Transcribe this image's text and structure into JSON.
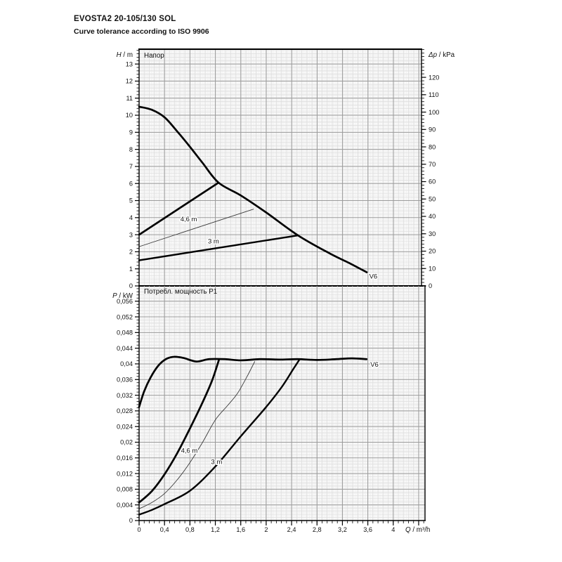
{
  "header": {
    "title": "EVOSTA2 20-105/130 SOL",
    "subtitle": "Curve tolerance according to ISO 9906"
  },
  "colors": {
    "curve": "#000000",
    "thin_curve": "#3a3a3a",
    "major_grid": "#9b9b9b",
    "minor_grid": "#dedede",
    "axis": "#000000",
    "text": "#111111",
    "background": "#ffffff"
  },
  "chart_data": [
    {
      "id": "head_chart",
      "type": "line",
      "title": "Напор",
      "ylabel": "H / m",
      "y2label": "Δp / kPa",
      "xlabel": "",
      "xlim": [
        0,
        4.442
      ],
      "ylim": [
        0,
        13.87
      ],
      "y2lim": [
        0,
        136.2
      ],
      "x_major": 0.4,
      "x_minor": 0.08,
      "y_major": 1,
      "y_minor": 0.2,
      "y2_major": 10,
      "y2_minor": 2,
      "grid": true,
      "legend": "none",
      "y_tick_labels": [
        "0",
        "1",
        "2",
        "3",
        "4",
        "5",
        "6",
        "7",
        "8",
        "9",
        "10",
        "11",
        "12",
        "13"
      ],
      "y2_tick_labels": [
        "0",
        "10",
        "20",
        "30",
        "40",
        "50",
        "60",
        "70",
        "80",
        "90",
        "100",
        "110",
        "120"
      ],
      "x_tick_labels": [],
      "series": [
        {
          "name": "curve-v6-head",
          "width": 2.7,
          "points": [
            [
              0,
              10.5
            ],
            [
              0.2,
              10.32
            ],
            [
              0.4,
              9.88
            ],
            [
              0.6,
              9.05
            ],
            [
              0.8,
              8.15
            ],
            [
              1.0,
              7.2
            ],
            [
              1.25,
              6.05
            ],
            [
              1.6,
              5.3
            ],
            [
              2.0,
              4.3
            ],
            [
              2.5,
              2.96
            ],
            [
              3.0,
              1.9
            ],
            [
              3.3,
              1.35
            ],
            [
              3.58,
              0.8
            ]
          ]
        },
        {
          "name": "curve-proportional-pressure-max",
          "width": 2.7,
          "points": [
            [
              0,
              3.0
            ],
            [
              1.25,
              6.05
            ]
          ]
        },
        {
          "name": "curve-setpoint-4-6m",
          "width": 0.9,
          "thin": true,
          "points": [
            [
              0,
              2.3
            ],
            [
              1.8,
              4.5
            ]
          ]
        },
        {
          "name": "curve-setpoint-3m",
          "width": 2.4,
          "points": [
            [
              0,
              1.5
            ],
            [
              2.5,
              2.96
            ]
          ]
        }
      ],
      "annotations": [
        {
          "text": "4,6 m",
          "x": 0.78,
          "y": 3.9,
          "anchor": "middle"
        },
        {
          "text": "3 m",
          "x": 1.17,
          "y": 2.62,
          "anchor": "middle"
        },
        {
          "text": "V6",
          "x": 3.62,
          "y": 0.55,
          "anchor": "start"
        }
      ]
    },
    {
      "id": "power_chart",
      "type": "line",
      "title": "Потребл. мощность P1",
      "ylabel": "P / kW",
      "y2label": "",
      "xlabel": "Q / m³/h",
      "xlim": [
        0,
        4.5
      ],
      "ylim": [
        0,
        0.0599
      ],
      "x_major": 0.4,
      "x_minor": 0.08,
      "y_major": 0.004,
      "y_minor": 0.0008,
      "grid": true,
      "legend": "none",
      "y_tick_labels": [
        "0",
        "0,004",
        "0,008",
        "0,012",
        "0,016",
        "0,02",
        "0,024",
        "0,028",
        "0,032",
        "0,036",
        "0,04",
        "0,044",
        "0,048",
        "0,052",
        "0,056"
      ],
      "x_tick_labels": [
        "0",
        "0,4",
        "0,8",
        "1,2",
        "1,6",
        "2",
        "2,4",
        "2,8",
        "3,2",
        "3,6",
        "4"
      ],
      "series": [
        {
          "name": "curve-v6-power",
          "width": 2.7,
          "points": [
            [
              0,
              0.029
            ],
            [
              0.08,
              0.033
            ],
            [
              0.18,
              0.0365
            ],
            [
              0.3,
              0.0395
            ],
            [
              0.42,
              0.0412
            ],
            [
              0.55,
              0.0418
            ],
            [
              0.7,
              0.0415
            ],
            [
              0.9,
              0.0406
            ],
            [
              1.1,
              0.0412
            ],
            [
              1.35,
              0.0412
            ],
            [
              1.6,
              0.0409
            ],
            [
              1.9,
              0.0412
            ],
            [
              2.2,
              0.0411
            ],
            [
              2.5,
              0.0412
            ],
            [
              2.8,
              0.041
            ],
            [
              3.1,
              0.0412
            ],
            [
              3.35,
              0.0414
            ],
            [
              3.58,
              0.0412
            ]
          ]
        },
        {
          "name": "curve-proportional-power",
          "width": 2.7,
          "points": [
            [
              0,
              0.0046
            ],
            [
              0.2,
              0.0075
            ],
            [
              0.4,
              0.0118
            ],
            [
              0.6,
              0.0172
            ],
            [
              0.8,
              0.0235
            ],
            [
              1.0,
              0.0302
            ],
            [
              1.15,
              0.0358
            ],
            [
              1.26,
              0.0412
            ]
          ]
        },
        {
          "name": "curve-power-4-6m",
          "width": 0.9,
          "thin": true,
          "points": [
            [
              0,
              0.003
            ],
            [
              0.2,
              0.0046
            ],
            [
              0.4,
              0.0069
            ],
            [
              0.6,
              0.0104
            ],
            [
              0.8,
              0.0148
            ],
            [
              1.0,
              0.02
            ],
            [
              1.2,
              0.0257
            ],
            [
              1.4,
              0.0295
            ],
            [
              1.55,
              0.0325
            ],
            [
              1.7,
              0.0368
            ],
            [
              1.82,
              0.0406
            ]
          ]
        },
        {
          "name": "curve-power-3m",
          "width": 2.4,
          "points": [
            [
              0,
              0.0015
            ],
            [
              0.2,
              0.0027
            ],
            [
              0.4,
              0.0042
            ],
            [
              0.8,
              0.0076
            ],
            [
              1.2,
              0.0138
            ],
            [
              1.6,
              0.0215
            ],
            [
              2.0,
              0.029
            ],
            [
              2.25,
              0.0342
            ],
            [
              2.42,
              0.0385
            ],
            [
              2.52,
              0.041
            ]
          ]
        }
      ],
      "annotations": [
        {
          "text": "4,6 m",
          "x": 0.79,
          "y": 0.0178,
          "anchor": "middle"
        },
        {
          "text": "3 m",
          "x": 1.22,
          "y": 0.015,
          "anchor": "middle"
        },
        {
          "text": "V6",
          "x": 3.64,
          "y": 0.0398,
          "anchor": "start"
        }
      ]
    }
  ]
}
